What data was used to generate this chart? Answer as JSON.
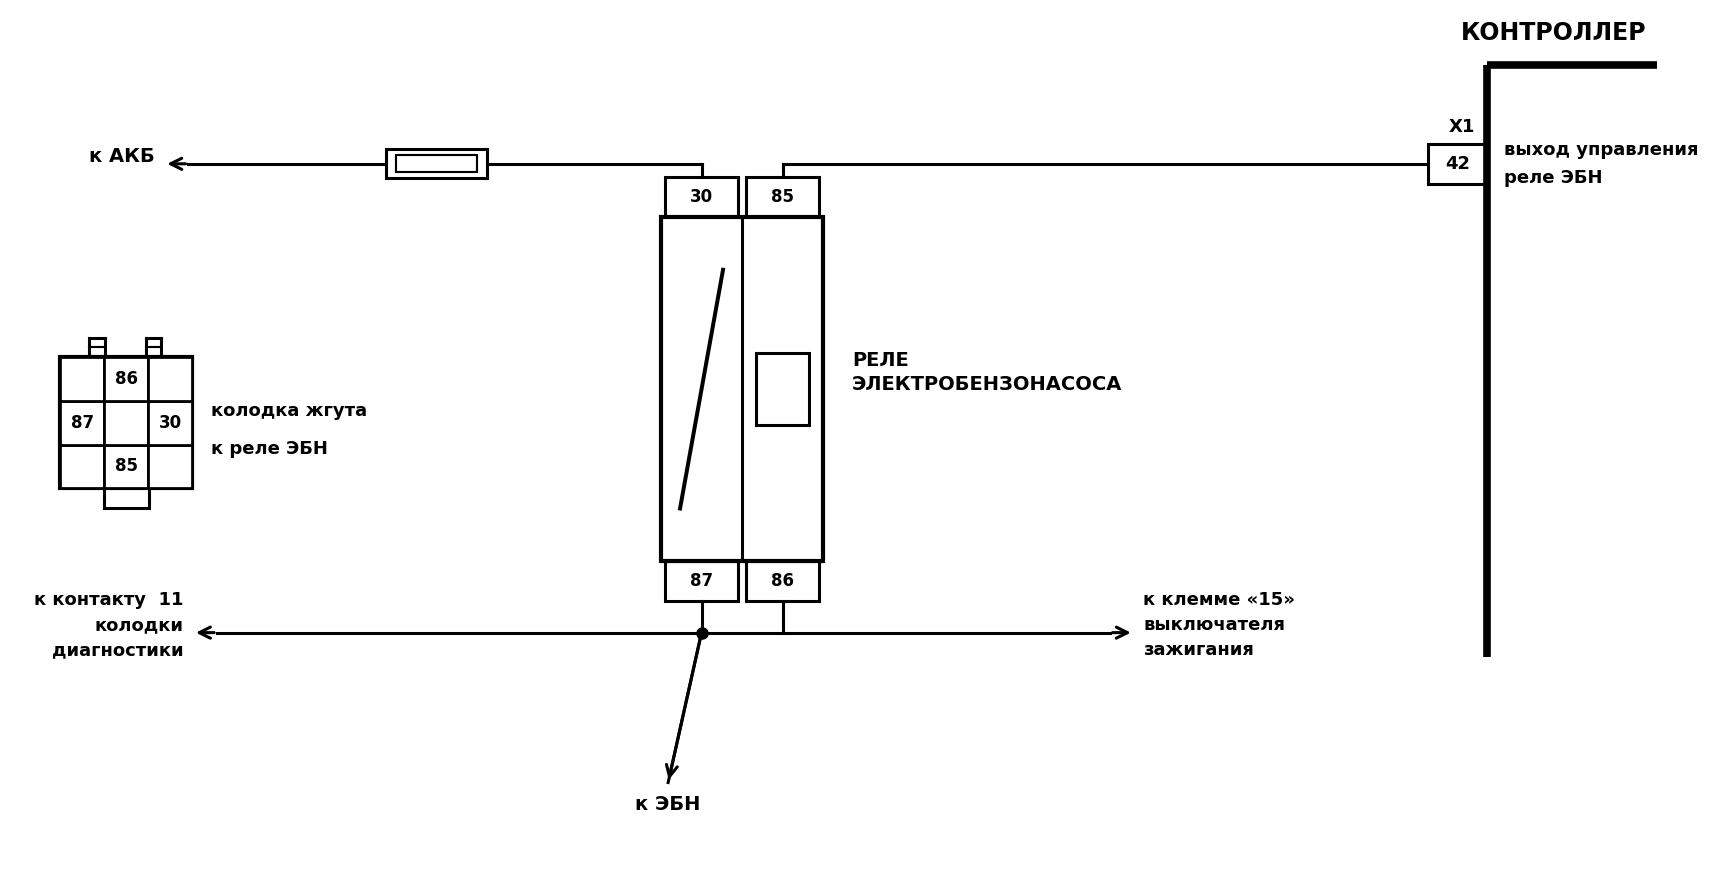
{
  "bg_color": "#ffffff",
  "line_color": "#000000",
  "lw": 2.2,
  "lw_thick": 5.5,
  "lw_med": 3.0,
  "title_controller": "КОНТРОЛЛЕР",
  "label_x1": "X1",
  "label_42": "42",
  "label_relay_line1": "РЕЛЕ",
  "label_relay_line2": "ЭЛЕКТРОБЕНЗОНАСОСА",
  "label_akb": "к АКБ",
  "label_kolodka_line1": "колодка жгута",
  "label_kolodka_line2": "к реле ЭБН",
  "label_kontakt": "к контакту  11\nколодки\nдиагностики",
  "label_klemma": "к клемме «15»\nвыключателя\nзажигания",
  "label_ebn": "к ЭБН",
  "label_vyhod_line1": "выход управления",
  "label_vyhod_line2": "реле ЭБН",
  "pin_30": "30",
  "pin_85": "85",
  "pin_87": "87",
  "pin_86": "86",
  "fs_title": 17,
  "fs_label": 13,
  "fs_pin": 12,
  "fs_main": 14,
  "arrow_mut": 20
}
